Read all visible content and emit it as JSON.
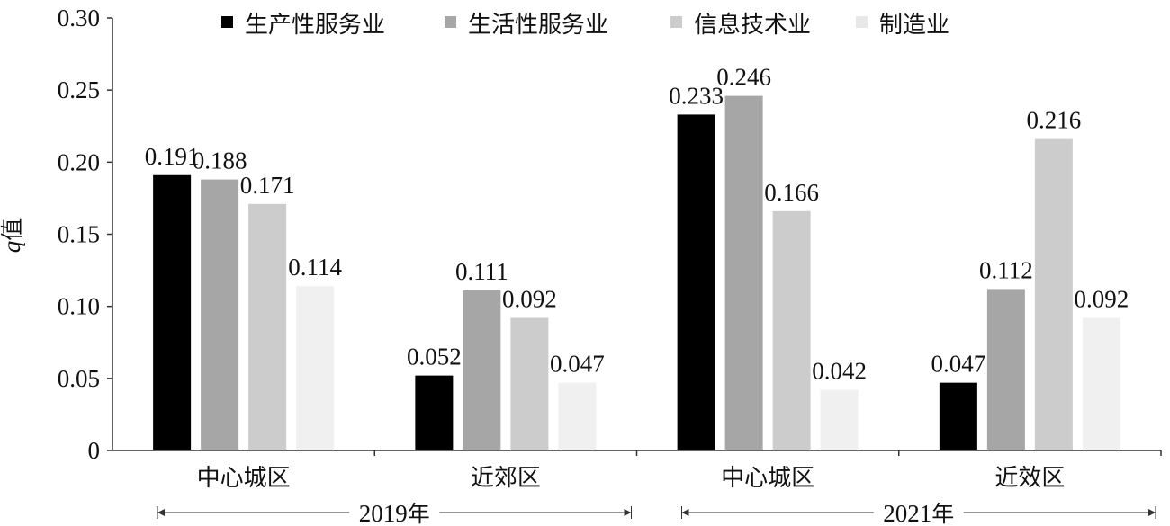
{
  "chart_data": {
    "type": "bar",
    "title": "",
    "xlabel": "",
    "ylabel": "q值",
    "ylim": [
      0,
      0.3
    ],
    "yticks": [
      "0",
      "0.05",
      "0.10",
      "0.15",
      "0.20",
      "0.25",
      "0.30"
    ],
    "categories": [
      "中心城区",
      "近郊区",
      "中心城区",
      "近效区"
    ],
    "groups": [
      {
        "label": "2019年",
        "categories": [
          "中心城区",
          "近郊区"
        ]
      },
      {
        "label": "2021年",
        "categories": [
          "中心城区",
          "近效区"
        ]
      }
    ],
    "legend_position": "top",
    "series": [
      {
        "name": "生产性服务业",
        "color": "#000000",
        "values": [
          0.191,
          0.052,
          0.233,
          0.047
        ],
        "labels": [
          "0.191",
          "0.052",
          "0.233",
          "0.047"
        ]
      },
      {
        "name": "生活性服务业",
        "color": "#a6a6a6",
        "values": [
          0.188,
          0.111,
          0.246,
          0.112
        ],
        "labels": [
          "0.188",
          "0.111",
          "0.246",
          "0.112"
        ]
      },
      {
        "name": "信息技术业",
        "color": "#cccccc",
        "values": [
          0.171,
          0.092,
          0.166,
          0.216
        ],
        "labels": [
          "0.171",
          "0.092",
          "0.166",
          "0.216"
        ]
      },
      {
        "name": "制造业",
        "color": "#f0f0f0",
        "values": [
          0.114,
          0.047,
          0.042,
          0.092
        ],
        "labels": [
          "0.114",
          "0.047",
          "0.042",
          "0.092"
        ]
      }
    ]
  }
}
